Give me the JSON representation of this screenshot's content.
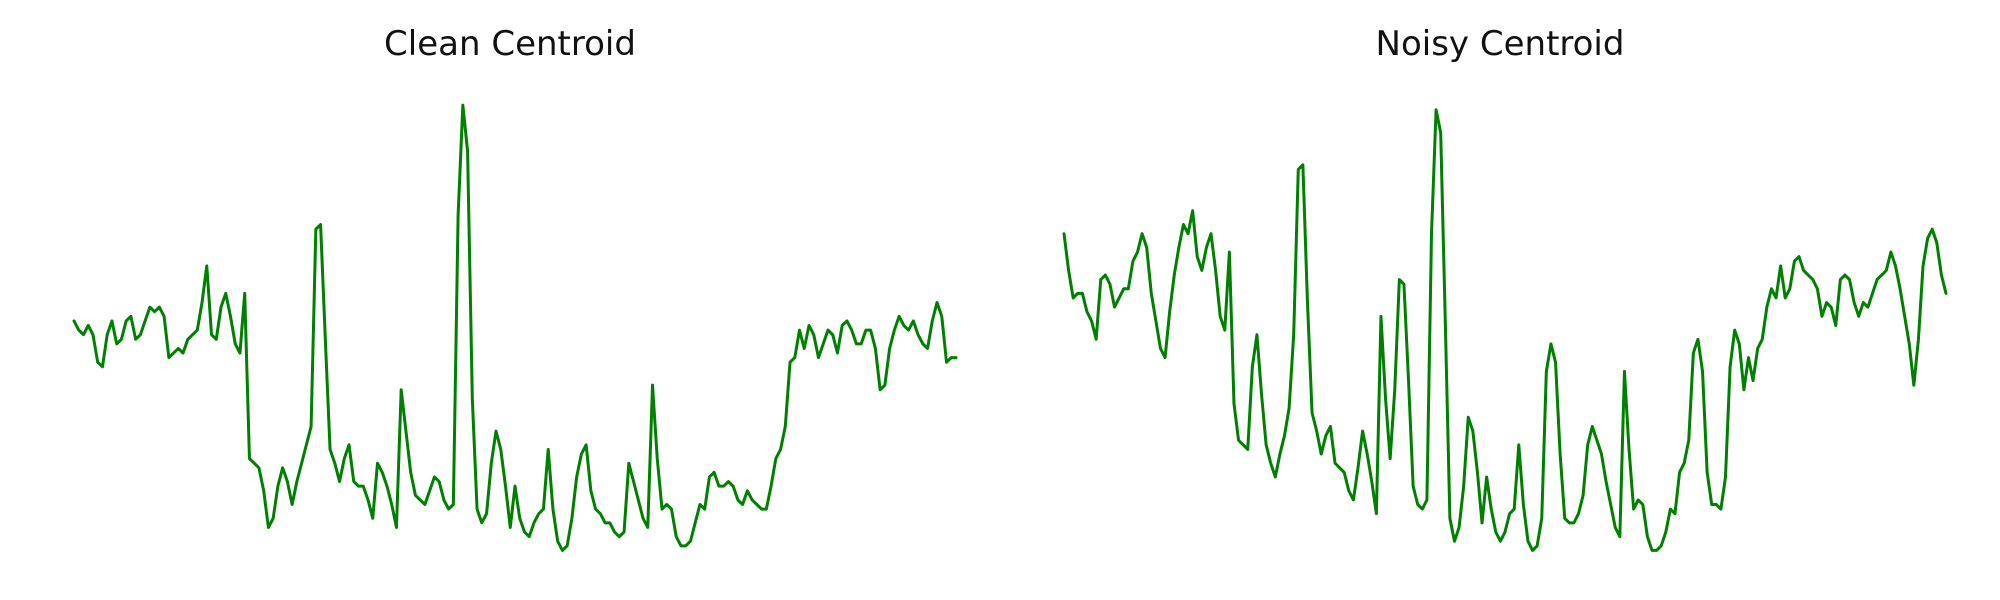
{
  "chart_data": [
    {
      "type": "line",
      "title": "Clean Centroid",
      "xlabel": "",
      "ylabel": "",
      "axes": "off",
      "grid": false,
      "ylim": [
        0,
        100
      ],
      "line_color": "#008000",
      "values": [
        51,
        49,
        48,
        50,
        48,
        42,
        41,
        48,
        51,
        46,
        47,
        51,
        52,
        47,
        48,
        51,
        54,
        53,
        54,
        52,
        43,
        44,
        45,
        44,
        47,
        48,
        49,
        55,
        63,
        48,
        47,
        54,
        57,
        52,
        46,
        44,
        57,
        21,
        20,
        19,
        14,
        6,
        8,
        15,
        19,
        16,
        11,
        16,
        20,
        24,
        28,
        71,
        72,
        47,
        23,
        20,
        16,
        21,
        24,
        16,
        15,
        15,
        12,
        8,
        20,
        18,
        15,
        11,
        6,
        36,
        27,
        18,
        13,
        12,
        11,
        14,
        17,
        16,
        12,
        10,
        11,
        74,
        98,
        88,
        34,
        10,
        7,
        9,
        20,
        27,
        23,
        15,
        6,
        15,
        8,
        5,
        4,
        7,
        9,
        10,
        23,
        10,
        3,
        1,
        2,
        8,
        17,
        22,
        24,
        14,
        10,
        9,
        7,
        7,
        5,
        4,
        5,
        20,
        16,
        12,
        8,
        6,
        37,
        21,
        10,
        11,
        10,
        4,
        2,
        2,
        3,
        7,
        11,
        10,
        17,
        18,
        15,
        15,
        16,
        15,
        12,
        11,
        14,
        12,
        11,
        10,
        10,
        15,
        21,
        23,
        28,
        42,
        43,
        49,
        45,
        50,
        48,
        43,
        46,
        49,
        48,
        44,
        50,
        51,
        49,
        46,
        46,
        49,
        49,
        45,
        36,
        37,
        45,
        49,
        52,
        50,
        49,
        51,
        48,
        46,
        45,
        51,
        55,
        52,
        42,
        43,
        43
      ]
    },
    {
      "type": "line",
      "title": "Noisy Centroid",
      "xlabel": "",
      "ylabel": "",
      "axes": "off",
      "grid": false,
      "ylim": [
        0,
        100
      ],
      "line_color": "#008000",
      "values": [
        70,
        62,
        56,
        57,
        57,
        53,
        51,
        47,
        60,
        61,
        59,
        54,
        56,
        58,
        58,
        64,
        66,
        70,
        67,
        57,
        51,
        45,
        43,
        53,
        61,
        67,
        72,
        70,
        75,
        65,
        62,
        67,
        70,
        62,
        52,
        49,
        66,
        33,
        25,
        24,
        23,
        41,
        48,
        35,
        24,
        20,
        17,
        22,
        26,
        32,
        48,
        84,
        85,
        55,
        31,
        27,
        22,
        26,
        28,
        20,
        19,
        18,
        14,
        12,
        19,
        27,
        22,
        16,
        9,
        52,
        34,
        21,
        36,
        60,
        59,
        38,
        15,
        11,
        10,
        12,
        70,
        97,
        92,
        51,
        8,
        3,
        6,
        15,
        30,
        27,
        18,
        7,
        17,
        10,
        5,
        3,
        5,
        9,
        10,
        24,
        11,
        3,
        1,
        2,
        8,
        40,
        46,
        42,
        22,
        8,
        7,
        7,
        9,
        13,
        24,
        28,
        25,
        22,
        16,
        11,
        6,
        4,
        40,
        23,
        10,
        12,
        11,
        4,
        1,
        1,
        2,
        5,
        10,
        9,
        18,
        20,
        25,
        44,
        47,
        40,
        18,
        11,
        11,
        10,
        17,
        41,
        49,
        46,
        36,
        43,
        38,
        45,
        47,
        54,
        58,
        56,
        63,
        56,
        58,
        64,
        65,
        62,
        61,
        60,
        58,
        52,
        55,
        54,
        50,
        60,
        61,
        60,
        55,
        52,
        55,
        54,
        57,
        60,
        61,
        62,
        66,
        63,
        58,
        52,
        46,
        37,
        47,
        63,
        69,
        71,
        68,
        61,
        57
      ]
    }
  ]
}
